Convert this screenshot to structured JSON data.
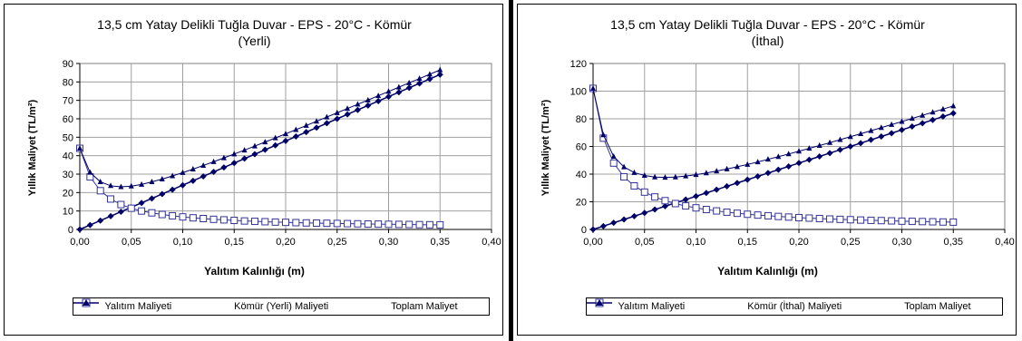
{
  "chart_data": [
    {
      "type": "line",
      "title": "13,5 cm Yatay Delikli Tuğla Duvar - EPS - 20°C - Kömür",
      "subtitle": "(Yerli)",
      "xlabel": "Yalıtım Kalınlığı (m)",
      "ylabel": "Yıllık Maliyet (TL/m²)",
      "xlim": [
        0,
        0.4
      ],
      "ylim": [
        0,
        90
      ],
      "x_ticks": [
        "0,00",
        "0,05",
        "0,10",
        "0,15",
        "0,20",
        "0,25",
        "0,30",
        "0,35",
        "0,40"
      ],
      "y_ticks": [
        "0",
        "10",
        "20",
        "30",
        "40",
        "50",
        "60",
        "70",
        "80",
        "90"
      ],
      "grid": "major",
      "legend": "bottom",
      "x": [
        0,
        0.01,
        0.02,
        0.03,
        0.04,
        0.05,
        0.06,
        0.07,
        0.08,
        0.09,
        0.1,
        0.11,
        0.12,
        0.13,
        0.14,
        0.15,
        0.16,
        0.17,
        0.18,
        0.19,
        0.2,
        0.21,
        0.22,
        0.23,
        0.24,
        0.25,
        0.26,
        0.27,
        0.28,
        0.29,
        0.3,
        0.31,
        0.32,
        0.33,
        0.34,
        0.35
      ],
      "series": [
        {
          "name": "Yalıtım Maliyeti",
          "marker": "diamond",
          "values": [
            0,
            2.4,
            4.8,
            7.2,
            9.6,
            12.0,
            14.4,
            16.8,
            19.2,
            21.6,
            24.0,
            26.4,
            28.8,
            31.2,
            33.6,
            36.0,
            38.4,
            40.8,
            43.2,
            45.6,
            48.0,
            50.4,
            52.8,
            55.2,
            57.6,
            60.0,
            62.4,
            64.8,
            67.2,
            69.6,
            72.0,
            74.4,
            76.8,
            79.2,
            81.6,
            84.0
          ]
        },
        {
          "name": "Kömür (Yerli) Maliyeti",
          "marker": "square-open",
          "values": [
            44,
            28.5,
            21,
            16.5,
            13.5,
            11.5,
            10,
            9,
            8.1,
            7.4,
            6.8,
            6.3,
            5.9,
            5.5,
            5.2,
            4.9,
            4.6,
            4.4,
            4.2,
            4.0,
            3.85,
            3.7,
            3.55,
            3.45,
            3.35,
            3.25,
            3.15,
            3.05,
            2.95,
            2.9,
            2.8,
            2.75,
            2.7,
            2.6,
            2.55,
            2.5
          ]
        },
        {
          "name": "Toplam Maliyet",
          "marker": "triangle",
          "values": [
            44,
            30.9,
            25.8,
            23.7,
            23.1,
            23.5,
            24.4,
            25.8,
            27.3,
            29.0,
            30.8,
            32.7,
            34.7,
            36.7,
            38.8,
            40.9,
            43.0,
            45.2,
            47.4,
            49.6,
            51.85,
            54.1,
            56.35,
            58.65,
            60.95,
            63.25,
            65.55,
            67.85,
            70.15,
            72.5,
            74.8,
            77.15,
            79.5,
            81.8,
            84.15,
            86.5
          ]
        }
      ]
    },
    {
      "type": "line",
      "title": "13,5 cm Yatay Delikli Tuğla Duvar - EPS - 20°C - Kömür",
      "subtitle": "(İthal)",
      "xlabel": "Yalıtım Kalınlığı (m)",
      "ylabel": "Yıllık Maliyet (TL/m²)",
      "xlim": [
        0,
        0.4
      ],
      "ylim": [
        0,
        120
      ],
      "x_ticks": [
        "0,00",
        "0,05",
        "0,10",
        "0,15",
        "0,20",
        "0,25",
        "0,30",
        "0,35",
        "0,40"
      ],
      "y_ticks": [
        "0",
        "20",
        "40",
        "60",
        "80",
        "100",
        "120"
      ],
      "grid": "major",
      "legend": "bottom",
      "x": [
        0,
        0.01,
        0.02,
        0.03,
        0.04,
        0.05,
        0.06,
        0.07,
        0.08,
        0.09,
        0.1,
        0.11,
        0.12,
        0.13,
        0.14,
        0.15,
        0.16,
        0.17,
        0.18,
        0.19,
        0.2,
        0.21,
        0.22,
        0.23,
        0.24,
        0.25,
        0.26,
        0.27,
        0.28,
        0.29,
        0.3,
        0.31,
        0.32,
        0.33,
        0.34,
        0.35
      ],
      "series": [
        {
          "name": "Yalıtım Maliyeti",
          "marker": "diamond",
          "values": [
            0,
            2.4,
            4.8,
            7.2,
            9.6,
            12.0,
            14.4,
            16.8,
            19.2,
            21.6,
            24.0,
            26.4,
            28.8,
            31.2,
            33.6,
            36.0,
            38.4,
            40.8,
            43.2,
            45.6,
            48.0,
            50.4,
            52.8,
            55.2,
            57.6,
            60.0,
            62.4,
            64.8,
            67.2,
            69.6,
            72.0,
            74.4,
            76.8,
            79.2,
            81.6,
            84.0
          ]
        },
        {
          "name": "Kömür (İthal) Maliyeti",
          "marker": "square-open",
          "values": [
            102,
            66,
            48,
            38,
            31.5,
            27,
            23.5,
            20.8,
            18.7,
            17.0,
            15.6,
            14.4,
            13.4,
            12.5,
            11.7,
            11.0,
            10.4,
            9.9,
            9.4,
            8.95,
            8.55,
            8.2,
            7.85,
            7.55,
            7.3,
            7.05,
            6.8,
            6.6,
            6.4,
            6.2,
            6.0,
            5.85,
            5.7,
            5.55,
            5.4,
            5.3
          ]
        },
        {
          "name": "Toplam Maliyet",
          "marker": "triangle",
          "values": [
            102,
            68.4,
            52.8,
            45.2,
            41.1,
            39.0,
            37.9,
            37.6,
            37.9,
            38.6,
            39.6,
            40.8,
            42.2,
            43.7,
            45.3,
            47.0,
            48.8,
            50.7,
            52.6,
            54.55,
            56.55,
            58.6,
            60.65,
            62.75,
            64.9,
            67.05,
            69.2,
            71.4,
            73.6,
            75.8,
            78.0,
            80.25,
            82.5,
            84.75,
            87.0,
            89.3
          ]
        }
      ]
    }
  ]
}
